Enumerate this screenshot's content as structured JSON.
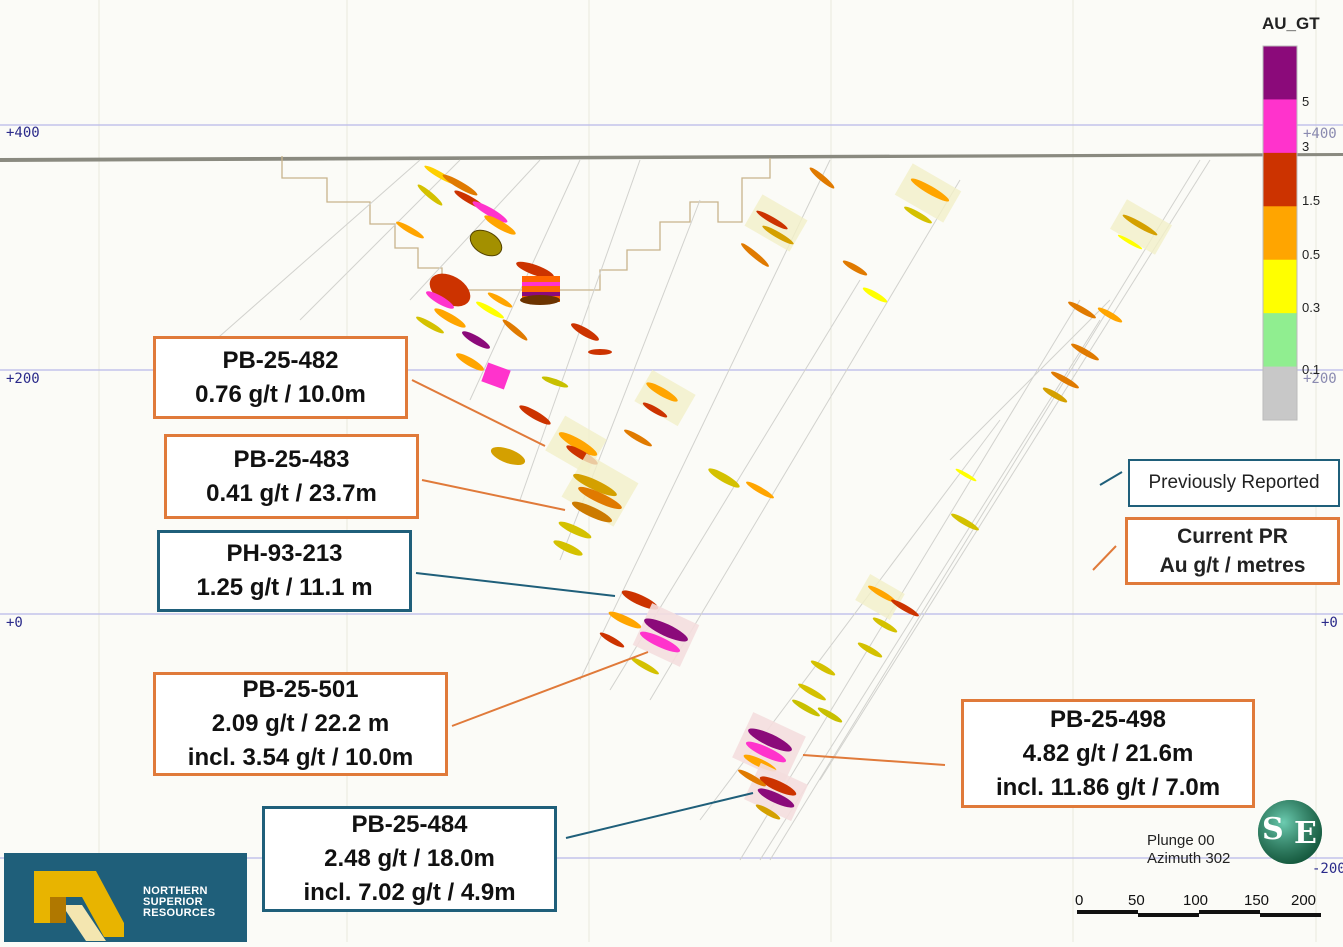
{
  "colorbar": {
    "title": "AU_GT",
    "stops": [
      {
        "label": "5",
        "color": "#8b0a7a"
      },
      {
        "label": "3",
        "color": "#ff33cc"
      },
      {
        "label": "1.5",
        "color": "#cc3300"
      },
      {
        "label": "0.5",
        "color": "#ffa500"
      },
      {
        "label": "0.3",
        "color": "#ffff00"
      },
      {
        "label": "0.1",
        "color": "#90ee90"
      },
      {
        "label": "",
        "color": "#c8c8c8"
      }
    ]
  },
  "elevations": {
    "left": [
      "+400",
      "+200",
      "+0"
    ],
    "right": [
      "+400",
      "+200",
      "+0",
      "-200"
    ]
  },
  "callouts": [
    {
      "id": "pb-25-482",
      "lines": [
        "PB-25-482",
        "0.76 g/t / 10.0m"
      ],
      "style": "current"
    },
    {
      "id": "pb-25-483",
      "lines": [
        "PB-25-483",
        "0.41 g/t / 23.7m"
      ],
      "style": "current"
    },
    {
      "id": "ph-93-213",
      "lines": [
        "PH-93-213",
        "1.25 g/t / 11.1 m"
      ],
      "style": "previous"
    },
    {
      "id": "pb-25-501",
      "lines": [
        "PB-25-501",
        "2.09 g/t / 22.2 m",
        "incl. 3.54 g/t / 10.0m"
      ],
      "style": "current"
    },
    {
      "id": "pb-25-498",
      "lines": [
        "PB-25-498",
        "4.82 g/t / 21.6m",
        "incl. 11.86 g/t / 7.0m"
      ],
      "style": "current"
    },
    {
      "id": "pb-25-484",
      "lines": [
        "PB-25-484",
        "2.48 g/t  / 18.0m",
        "incl. 7.02 g/t / 4.9m"
      ],
      "style": "previous"
    }
  ],
  "legend": {
    "previous_label": "Previously Reported",
    "current_label_1": "Current PR",
    "current_label_2": "Au g/t / metres",
    "previous_color": "#1f5f7a",
    "current_color": "#e07a3a"
  },
  "view": {
    "plunge": "Plunge 00",
    "azimuth": "Azimuth 302",
    "badge": [
      "S",
      "E"
    ]
  },
  "scale_bar": {
    "ticks": [
      "0",
      "50",
      "100",
      "150",
      "200"
    ]
  },
  "logo": {
    "lines": [
      "NORTHERN",
      "SUPERIOR",
      "RESOURCES"
    ]
  }
}
